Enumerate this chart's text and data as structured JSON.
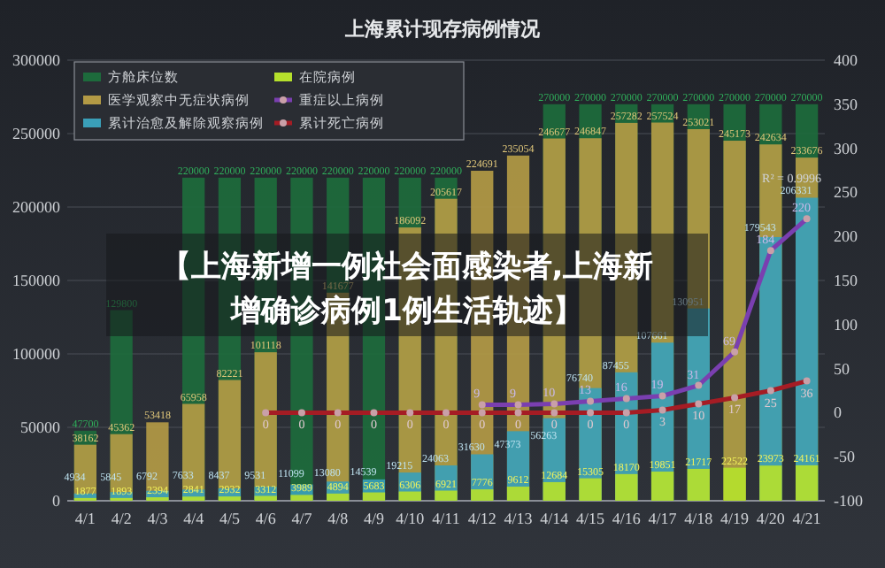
{
  "chart_data": {
    "type": "bar",
    "title": "上海累计现存病例情况",
    "categories": [
      "4/1",
      "4/2",
      "4/3",
      "4/4",
      "4/5",
      "4/6",
      "4/7",
      "4/8",
      "4/9",
      "4/10",
      "4/11",
      "4/12",
      "4/13",
      "4/14",
      "4/15",
      "4/16",
      "4/17",
      "4/18",
      "4/19",
      "4/20",
      "4/21"
    ],
    "series": [
      {
        "name": "方舱床位数",
        "color": "#1d6b3c",
        "values": [
          47700,
          129800,
          null,
          220000,
          220000,
          220000,
          220000,
          220000,
          220000,
          220000,
          220000,
          null,
          null,
          270000,
          270000,
          270000,
          270000,
          270000,
          270000,
          270000,
          270000
        ]
      },
      {
        "name": "医学观察中无症状病例",
        "color": "#b39a45",
        "values": [
          38162,
          45362,
          53418,
          65958,
          82221,
          101118,
          null,
          141677,
          null,
          186092,
          205617,
          224691,
          235054,
          246677,
          246847,
          257282,
          257524,
          253021,
          245173,
          242634,
          233676
        ]
      },
      {
        "name": "累计治愈及解除观察病例",
        "color": "#3a9fb8",
        "values": [
          4934,
          5845,
          6792,
          7633,
          8437,
          9531,
          11099,
          13080,
          14539,
          19215,
          24063,
          31630,
          47373,
          56263,
          76740,
          87455,
          107661,
          130951,
          null,
          179543,
          206331
        ]
      },
      {
        "name": "在院病例",
        "color": "#b5e02c",
        "values": [
          1877,
          1893,
          2394,
          2841,
          2932,
          3312,
          3989,
          4894,
          5683,
          6306,
          6921,
          7776,
          9612,
          12684,
          15305,
          18170,
          19851,
          21717,
          22522,
          23973,
          24161
        ]
      },
      {
        "name": "重症以上病例",
        "type": "line",
        "axis": "y2",
        "color": "#7a3fb0",
        "values": [
          null,
          null,
          null,
          null,
          null,
          null,
          null,
          null,
          null,
          null,
          null,
          9,
          9,
          10,
          13,
          16,
          19,
          31,
          69,
          184,
          220
        ]
      },
      {
        "name": "累计死亡病例",
        "type": "line",
        "axis": "y2",
        "color": "#a51c24",
        "values": [
          null,
          null,
          null,
          null,
          null,
          0,
          0,
          0,
          0,
          0,
          0,
          0,
          0,
          0,
          0,
          0,
          3,
          10,
          17,
          25,
          36
        ]
      }
    ],
    "ylim": [
      0,
      300000
    ],
    "yticks": [
      0,
      50000,
      100000,
      150000,
      200000,
      250000,
      300000
    ],
    "y2lim": [
      -100,
      400
    ],
    "y2ticks": [
      -100,
      -50,
      0,
      50,
      100,
      150,
      200,
      250,
      300,
      350,
      400
    ],
    "grid": "y",
    "legend": "top left",
    "marker": "circle",
    "data_labels": true,
    "annotations": [
      "R² = 0.9996",
      "【上海新增一例社会面感染者,上海新增确诊病例1例生活轨迹】"
    ]
  }
}
